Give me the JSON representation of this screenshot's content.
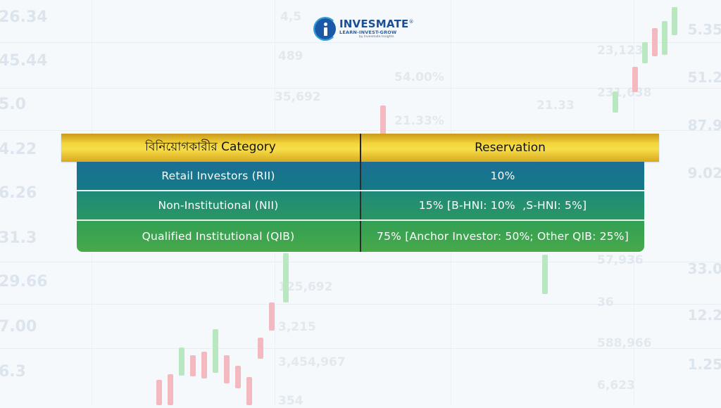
{
  "logo": {
    "brand": "INVESMATE",
    "registered": "®",
    "tagline": "LEARN-INVEST-GROW",
    "byline": "by Invesmate Insights"
  },
  "table": {
    "headers": [
      "বিনিয়োগকারীর Category",
      "Reservation"
    ],
    "rows": [
      [
        "Retail Investors (RII)",
        "10%"
      ],
      [
        "Non-Institutional (NII)",
        "15% [B-HNI: 10%  ,S-HNI: 5%]"
      ],
      [
        "Qualified Institutional (QIB)",
        "75% [Anchor Investor: 50%; Other QIB: 25%]"
      ]
    ]
  },
  "background_numbers": {
    "left": [
      "26.34",
      "45.44",
      "5.0",
      "4.22",
      "6.26",
      "31.3",
      "29.66",
      "7.00",
      "6.3"
    ],
    "middle": [
      "489",
      "35,692",
      "54.00%",
      "21.33%",
      "21.33",
      "23,123",
      "231,638",
      "125,692",
      "3,215",
      "3,454,967",
      "57,936",
      "36",
      "588,966",
      "6,623",
      "354",
      "4,5"
    ],
    "right": [
      "5.35",
      "51.2",
      "87.9",
      "9.02",
      "33.0",
      "12.2",
      "1.25"
    ]
  },
  "colors": {
    "header_gold": "#f4d53a",
    "row1": "#1c6f93",
    "row2": "#1f8a7a",
    "row3": "#3fa650",
    "logo_blue": "#1a58a8"
  }
}
